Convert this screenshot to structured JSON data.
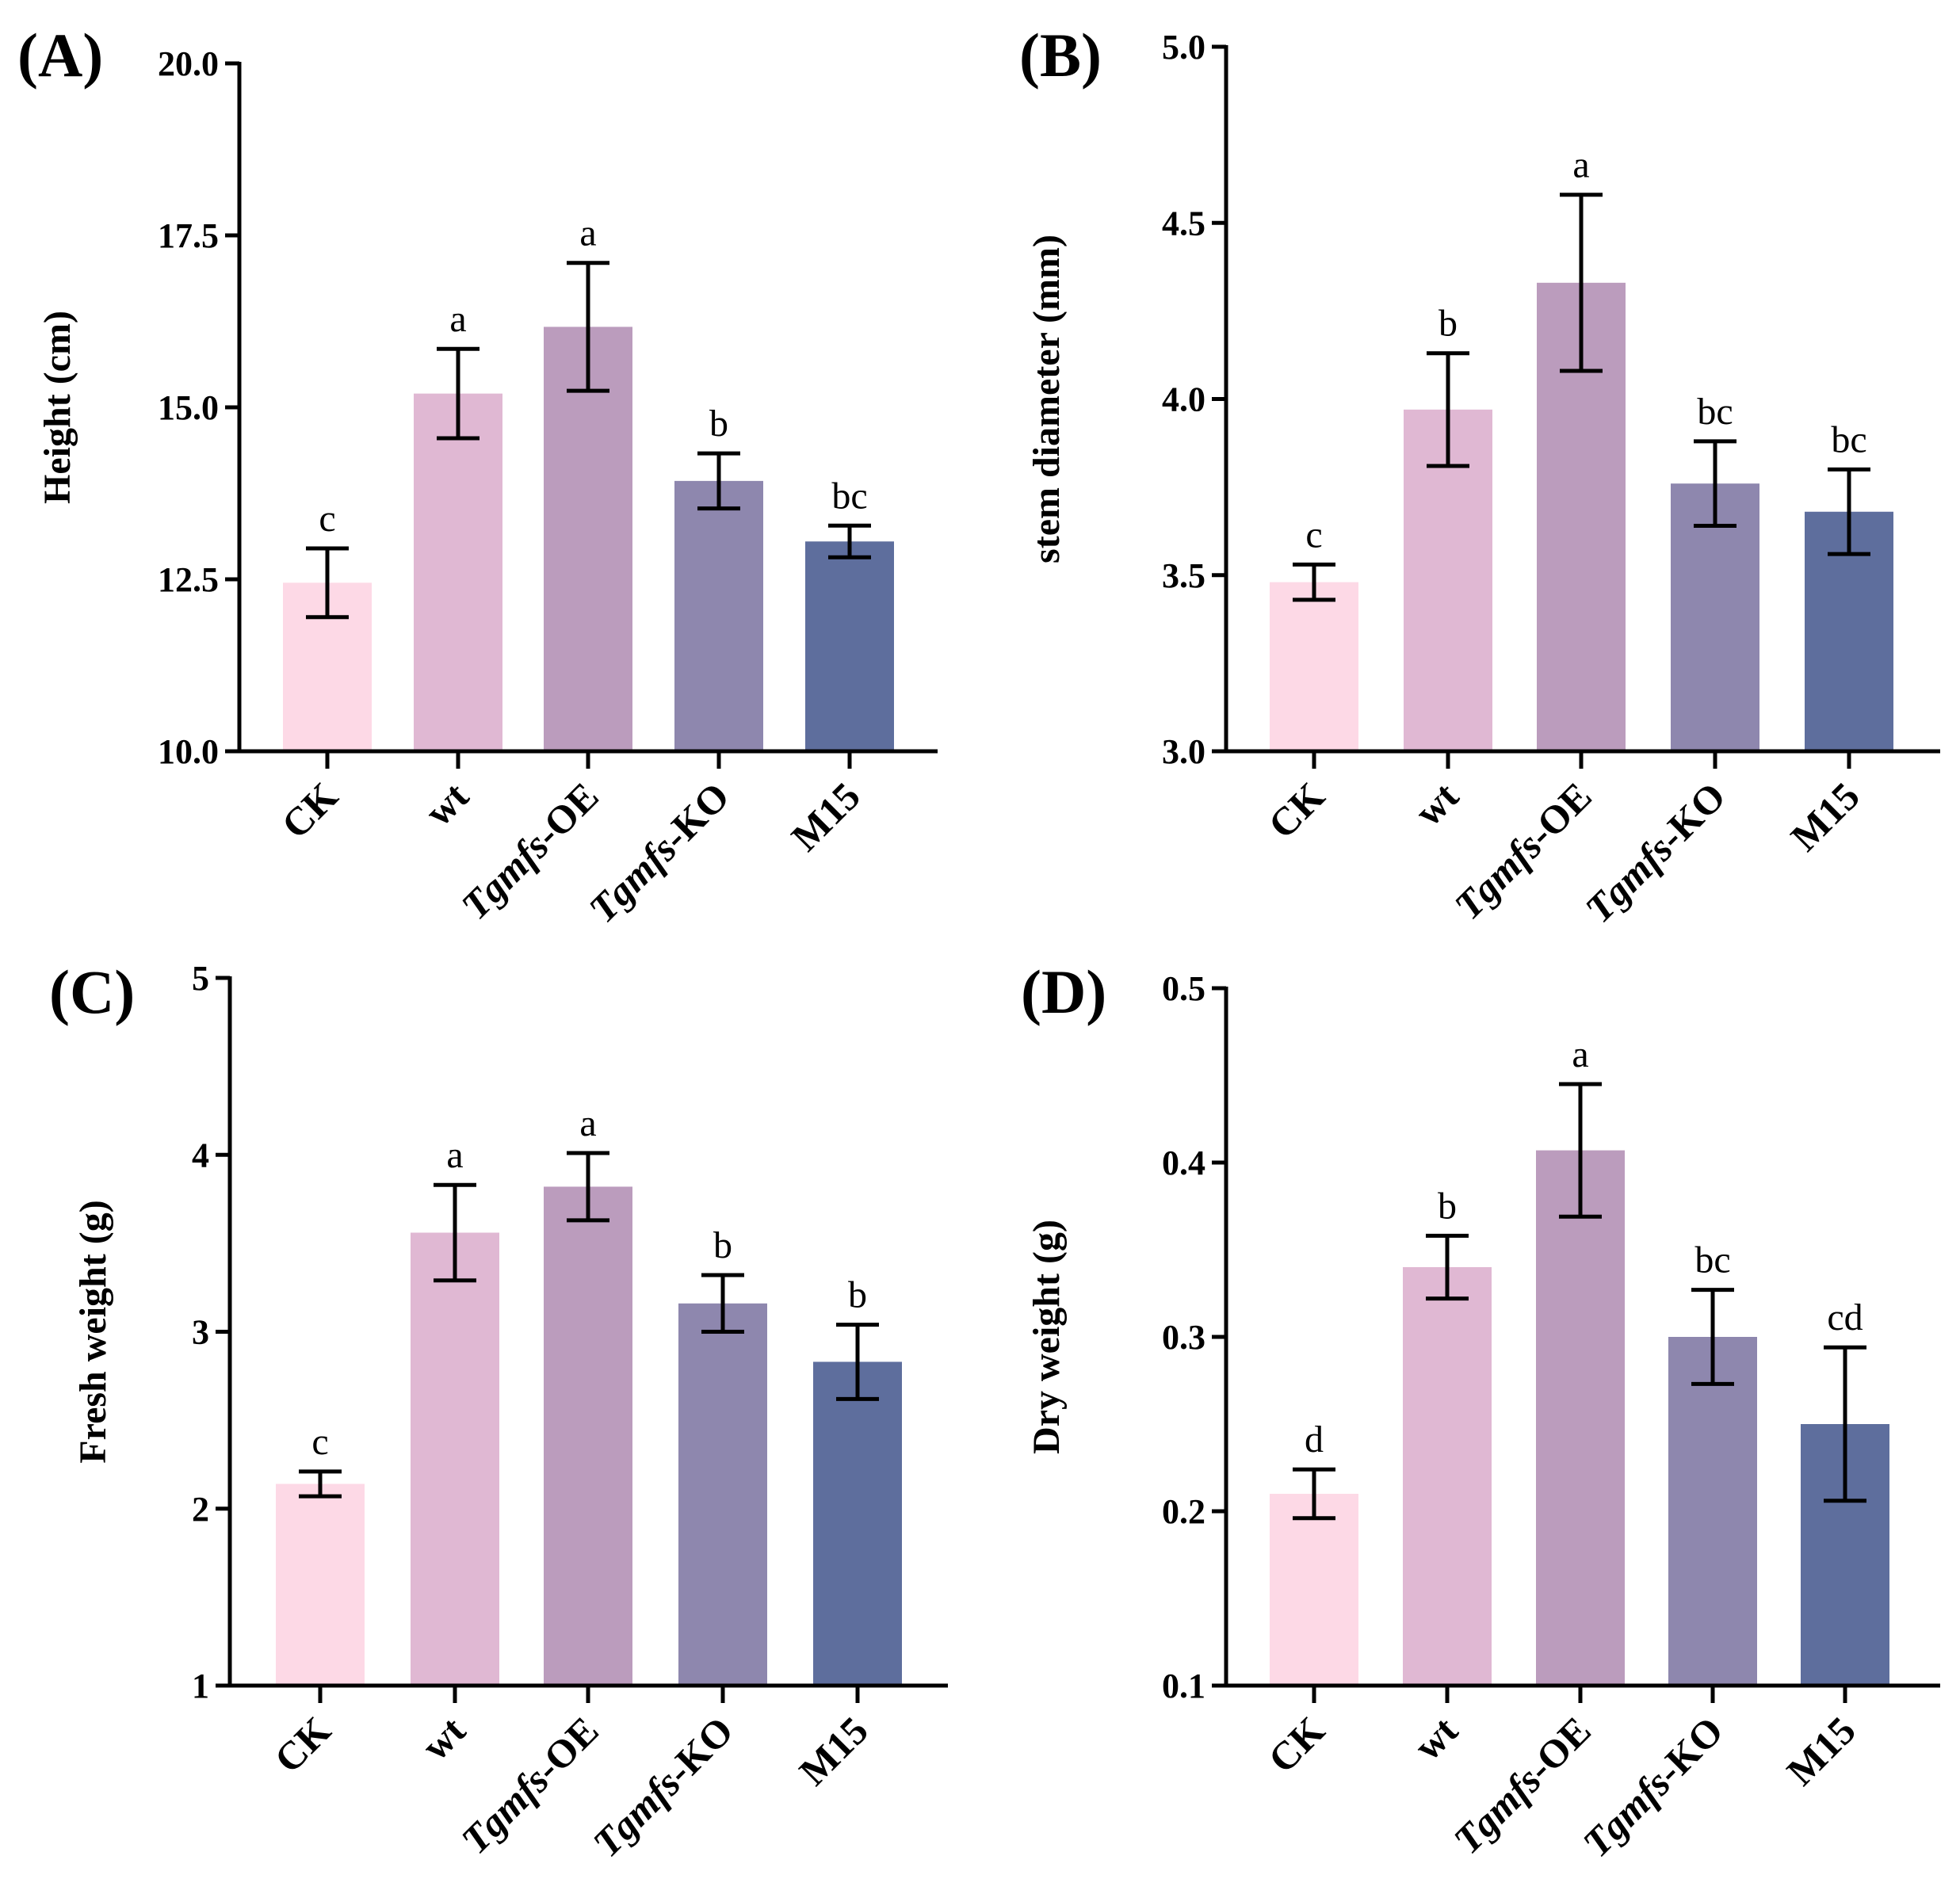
{
  "figure": {
    "colors": [
      "#fdd9e6",
      "#e0b8d3",
      "#bb9cbd",
      "#8e87ae",
      "#5e6e9d"
    ]
  },
  "chart_data": [
    {
      "panel": "(A)",
      "type": "bar",
      "ylabel": "Height (cm)",
      "ylim": [
        10.0,
        20.0
      ],
      "yticks": [
        "10.0",
        "12.5",
        "15.0",
        "17.5",
        "20.0"
      ],
      "tick_values": [
        10.0,
        12.5,
        15.0,
        17.5,
        20.0
      ],
      "categories": [
        {
          "prefix": "",
          "italic": "",
          "suffix": "CK"
        },
        {
          "prefix": "",
          "italic": "",
          "suffix": "wt"
        },
        {
          "prefix": "",
          "italic": "Tgmfs",
          "suffix": "-OE"
        },
        {
          "prefix": "",
          "italic": "Tgmfs",
          "suffix": "-KO"
        },
        {
          "prefix": "",
          "italic": "",
          "suffix": "M15"
        }
      ],
      "values": [
        12.45,
        15.2,
        16.17,
        13.93,
        13.05
      ],
      "errors": [
        0.5,
        0.65,
        0.93,
        0.4,
        0.23
      ],
      "letters": [
        "c",
        "a",
        "a",
        "b",
        "bc"
      ]
    },
    {
      "panel": "(B)",
      "type": "bar",
      "ylabel": "stem diameter (mm)",
      "ylim": [
        3.0,
        5.0
      ],
      "yticks": [
        "3.0",
        "3.5",
        "4.0",
        "4.5",
        "5.0"
      ],
      "tick_values": [
        3.0,
        3.5,
        4.0,
        4.5,
        5.0
      ],
      "categories": [
        {
          "prefix": "",
          "italic": "",
          "suffix": "CK"
        },
        {
          "prefix": "",
          "italic": "",
          "suffix": "wt"
        },
        {
          "prefix": "",
          "italic": "Tgmfs",
          "suffix": "-OE"
        },
        {
          "prefix": "",
          "italic": "Tgmfs",
          "suffix": "-KO"
        },
        {
          "prefix": "",
          "italic": "",
          "suffix": "M15"
        }
      ],
      "values": [
        3.48,
        3.97,
        4.33,
        3.76,
        3.68
      ],
      "errors": [
        0.05,
        0.16,
        0.25,
        0.12,
        0.12
      ],
      "letters": [
        "c",
        "b",
        "a",
        "bc",
        "bc"
      ]
    },
    {
      "panel": "(C)",
      "type": "bar",
      "ylabel": "Fresh weight (g)",
      "ylim": [
        1,
        5
      ],
      "yticks": [
        "1",
        "2",
        "3",
        "4",
        "5"
      ],
      "tick_values": [
        1,
        2,
        3,
        4,
        5
      ],
      "categories": [
        {
          "prefix": "",
          "italic": "",
          "suffix": "CK"
        },
        {
          "prefix": "",
          "italic": "",
          "suffix": "wt"
        },
        {
          "prefix": "",
          "italic": "Tgmfs",
          "suffix": "-OE"
        },
        {
          "prefix": "",
          "italic": "Tgmfs",
          "suffix": "-KO"
        },
        {
          "prefix": "",
          "italic": "",
          "suffix": "M15"
        }
      ],
      "values": [
        2.14,
        3.56,
        3.82,
        3.16,
        2.83
      ],
      "errors": [
        0.07,
        0.27,
        0.19,
        0.16,
        0.21
      ],
      "letters": [
        "c",
        "a",
        "a",
        "b",
        "b"
      ]
    },
    {
      "panel": "(D)",
      "type": "bar",
      "ylabel": "Dry weight (g)",
      "ylim": [
        0.1,
        0.5
      ],
      "yticks": [
        "0.1",
        "0.2",
        "0.3",
        "0.4",
        "0.5"
      ],
      "tick_values": [
        0.1,
        0.2,
        0.3,
        0.4,
        0.5
      ],
      "categories": [
        {
          "prefix": "",
          "italic": "",
          "suffix": "CK"
        },
        {
          "prefix": "",
          "italic": "",
          "suffix": "wt"
        },
        {
          "prefix": "",
          "italic": "Tgmfs",
          "suffix": "-OE"
        },
        {
          "prefix": "",
          "italic": "Tgmfs",
          "suffix": "-KO"
        },
        {
          "prefix": "",
          "italic": "",
          "suffix": "M15"
        }
      ],
      "values": [
        0.21,
        0.34,
        0.407,
        0.3,
        0.25
      ],
      "errors": [
        0.014,
        0.018,
        0.038,
        0.027,
        0.044
      ],
      "letters": [
        "d",
        "b",
        "a",
        "bc",
        "cd"
      ]
    }
  ]
}
